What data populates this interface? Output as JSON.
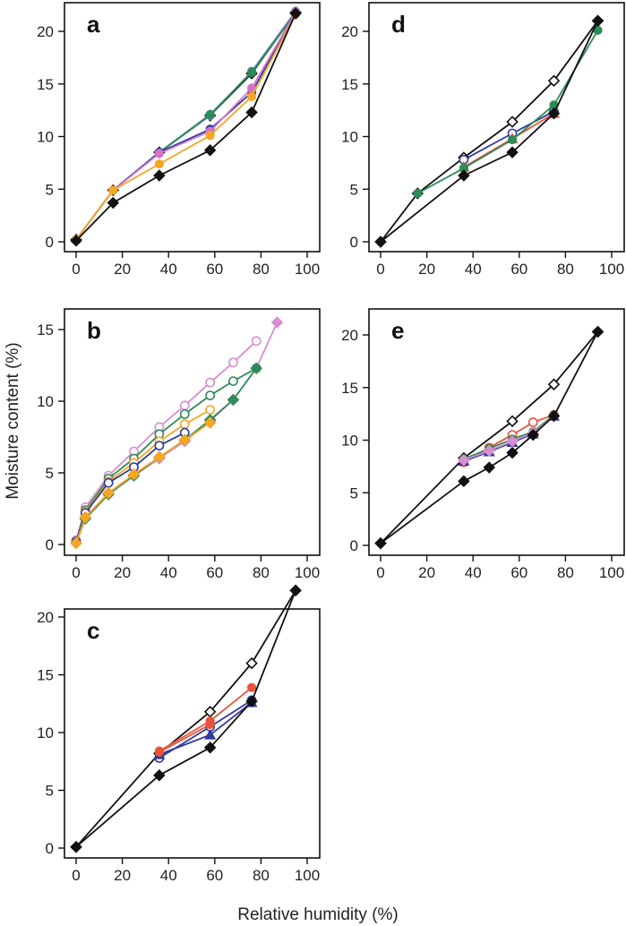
{
  "figure": {
    "xlabel": "Relative humidity (%)",
    "ylabel": "Moisture content (%)"
  },
  "chart_data": [
    {
      "type": "line",
      "panel_label": "a",
      "xlim": [
        0,
        100
      ],
      "ylim": [
        0,
        22
      ],
      "xticks": [
        0,
        20,
        40,
        60,
        80,
        100
      ],
      "yticks": [
        0,
        5,
        10,
        15,
        20
      ],
      "series": [
        {
          "color": "#111111",
          "marker": "open-diamond",
          "x": [
            0,
            16,
            36,
            58,
            76,
            95
          ],
          "y": [
            0.2,
            4.9,
            8.5,
            12.0,
            16.0,
            21.8
          ]
        },
        {
          "color": "#6b7fbf",
          "marker": "circle",
          "x": [
            0,
            16,
            36,
            58,
            76,
            95
          ],
          "y": [
            0.2,
            4.9,
            8.5,
            12.0,
            16.2,
            21.9
          ]
        },
        {
          "color": "#2e8b57",
          "marker": "circle",
          "x": [
            0,
            16,
            36,
            58,
            76,
            95
          ],
          "y": [
            0.2,
            4.9,
            8.5,
            12.1,
            16.1,
            21.7
          ]
        },
        {
          "color": "#2f3aa0",
          "marker": "circle",
          "x": [
            0,
            16,
            36,
            58,
            76,
            95
          ],
          "y": [
            0.2,
            4.9,
            8.5,
            10.7,
            14.2,
            21.7
          ]
        },
        {
          "color": "#d872c8",
          "marker": "circle",
          "x": [
            0,
            16,
            36,
            58,
            76,
            95
          ],
          "y": [
            0.2,
            4.9,
            8.4,
            10.5,
            14.6,
            21.8
          ]
        },
        {
          "color": "#f5a623",
          "marker": "circle",
          "x": [
            0,
            16,
            36,
            58,
            76,
            95
          ],
          "y": [
            0.2,
            4.9,
            7.4,
            10.1,
            13.8,
            21.6
          ]
        },
        {
          "color": "#111111",
          "marker": "filled-diamond",
          "x": [
            0,
            16,
            36,
            58,
            76,
            95
          ],
          "y": [
            0.1,
            3.7,
            6.3,
            8.7,
            12.3,
            21.7
          ]
        }
      ]
    },
    {
      "type": "line",
      "panel_label": "b",
      "xlim": [
        0,
        100
      ],
      "ylim": [
        0,
        16
      ],
      "xticks": [
        0,
        20,
        40,
        60,
        80,
        100
      ],
      "yticks": [
        0,
        5,
        10,
        15
      ],
      "series": [
        {
          "color": "#d98ed1",
          "marker": "open-circle",
          "x": [
            0,
            4,
            14,
            25,
            36,
            47,
            58,
            68,
            78
          ],
          "y": [
            0.3,
            2.6,
            4.8,
            6.5,
            8.2,
            9.7,
            11.3,
            12.7,
            14.2
          ]
        },
        {
          "color": "#2e8b57",
          "marker": "open-circle",
          "x": [
            0,
            4,
            14,
            25,
            36,
            47,
            58,
            68,
            78
          ],
          "y": [
            0.2,
            2.4,
            4.6,
            6.0,
            7.7,
            9.1,
            10.4,
            11.4,
            12.3
          ]
        },
        {
          "color": "#f5a623",
          "marker": "open-circle",
          "x": [
            0,
            4,
            14,
            25,
            36,
            47,
            58
          ],
          "y": [
            0.2,
            2.3,
            4.4,
            5.7,
            7.2,
            8.4,
            9.4
          ]
        },
        {
          "color": "#2f3aa0",
          "marker": "open-circle",
          "x": [
            0,
            4,
            14,
            25,
            36,
            47
          ],
          "y": [
            0.2,
            2.2,
            4.3,
            5.4,
            6.9,
            7.8
          ]
        },
        {
          "color": "#d98ed1",
          "marker": "filled-diamond",
          "x": [
            0,
            4,
            14,
            25,
            36,
            47,
            58,
            68,
            78,
            87
          ],
          "y": [
            0.1,
            1.9,
            3.6,
            4.8,
            6.0,
            7.2,
            8.6,
            10.1,
            12.3,
            15.5
          ]
        },
        {
          "color": "#2e8b57",
          "marker": "filled-diamond",
          "x": [
            0,
            4,
            14,
            25,
            36,
            47,
            58,
            68,
            78
          ],
          "y": [
            0.1,
            1.8,
            3.5,
            4.8,
            6.1,
            7.3,
            8.7,
            10.1,
            12.3
          ]
        },
        {
          "color": "#f5a623",
          "marker": "filled-diamond",
          "x": [
            0,
            4,
            14,
            25,
            36,
            47,
            58
          ],
          "y": [
            0.1,
            1.9,
            3.6,
            4.9,
            6.1,
            7.3,
            8.5
          ]
        }
      ]
    },
    {
      "type": "line",
      "panel_label": "c",
      "xlim": [
        0,
        100
      ],
      "ylim": [
        0,
        23
      ],
      "xticks": [
        0,
        20,
        40,
        60,
        80,
        100
      ],
      "yticks": [
        0,
        5,
        10,
        15,
        20
      ],
      "series": [
        {
          "color": "#111111",
          "marker": "open-diamond",
          "x": [
            0,
            36,
            58,
            76,
            95
          ],
          "y": [
            0.1,
            8.2,
            11.8,
            16.0,
            22.3
          ]
        },
        {
          "color": "#e8553a",
          "marker": "circle",
          "x": [
            36,
            58,
            76
          ],
          "y": [
            8.4,
            11.0,
            13.9
          ]
        },
        {
          "color": "#2f3aa0",
          "marker": "open-circle",
          "x": [
            36,
            58,
            76
          ],
          "y": [
            7.8,
            10.5,
            12.8
          ]
        },
        {
          "color": "#2f3aa0",
          "marker": "triangle",
          "x": [
            36,
            58,
            76
          ],
          "y": [
            8.1,
            9.8,
            12.6
          ]
        },
        {
          "color": "#e8553a",
          "marker": "circle",
          "x": [
            36,
            58
          ],
          "y": [
            8.3,
            10.7
          ]
        },
        {
          "color": "#111111",
          "marker": "filled-diamond",
          "x": [
            0,
            36,
            58,
            76,
            95
          ],
          "y": [
            0.1,
            6.3,
            8.7,
            12.7,
            22.3
          ]
        }
      ]
    },
    {
      "type": "line",
      "panel_label": "d",
      "xlim": [
        0,
        100
      ],
      "ylim": [
        0,
        22
      ],
      "xticks": [
        0,
        20,
        40,
        60,
        80,
        100
      ],
      "yticks": [
        0,
        5,
        10,
        15,
        20
      ],
      "series": [
        {
          "color": "#111111",
          "marker": "open-diamond",
          "x": [
            0,
            16,
            36,
            57,
            75,
            94
          ],
          "y": [
            0.0,
            4.6,
            8.0,
            11.4,
            15.3,
            21.0
          ]
        },
        {
          "color": "#2f3aa0",
          "marker": "open-circle",
          "x": [
            36,
            57,
            75
          ],
          "y": [
            7.8,
            10.3,
            12.4
          ]
        },
        {
          "color": "#e8553a",
          "marker": "triangle",
          "x": [
            36,
            57,
            75
          ],
          "y": [
            7.1,
            9.8,
            12.2
          ]
        },
        {
          "color": "#2e8b57",
          "marker": "circle",
          "x": [
            16,
            36,
            57,
            75,
            94
          ],
          "y": [
            4.6,
            7.0,
            9.7,
            13.0,
            20.1
          ]
        },
        {
          "color": "#111111",
          "marker": "filled-diamond",
          "x": [
            0,
            36,
            57,
            75,
            94
          ],
          "y": [
            0.0,
            6.3,
            8.5,
            12.2,
            21.0
          ]
        }
      ]
    },
    {
      "type": "line",
      "panel_label": "e",
      "xlim": [
        0,
        100
      ],
      "ylim": [
        0,
        21
      ],
      "xticks": [
        0,
        20,
        40,
        60,
        80,
        100
      ],
      "yticks": [
        0,
        5,
        10,
        15,
        20
      ],
      "series": [
        {
          "color": "#111111",
          "marker": "open-diamond",
          "x": [
            0,
            36,
            57,
            75,
            94
          ],
          "y": [
            0.2,
            8.3,
            11.8,
            15.3,
            20.3
          ]
        },
        {
          "color": "#e8553a",
          "marker": "open-circle",
          "x": [
            36,
            47,
            57,
            66,
            75
          ],
          "y": [
            7.9,
            9.3,
            10.5,
            11.7,
            12.4
          ]
        },
        {
          "color": "#2e8b57",
          "marker": "circle",
          "x": [
            36,
            47,
            57,
            66,
            75
          ],
          "y": [
            8.2,
            9.2,
            10.1,
            10.8,
            12.4
          ]
        },
        {
          "color": "#2f3aa0",
          "marker": "triangle",
          "x": [
            36,
            47,
            57,
            66,
            75
          ],
          "y": [
            8.0,
            8.9,
            9.8,
            10.6,
            12.3
          ]
        },
        {
          "color": "#d98ed1",
          "marker": "filled-diamond",
          "x": [
            36,
            47,
            57,
            66,
            75
          ],
          "y": [
            8.1,
            9.0,
            9.9,
            10.7,
            12.3
          ]
        },
        {
          "color": "#111111",
          "marker": "filled-diamond",
          "x": [
            0,
            36,
            47,
            57,
            66,
            75,
            94
          ],
          "y": [
            0.2,
            6.1,
            7.4,
            8.8,
            10.5,
            12.3,
            20.3
          ]
        }
      ]
    }
  ]
}
